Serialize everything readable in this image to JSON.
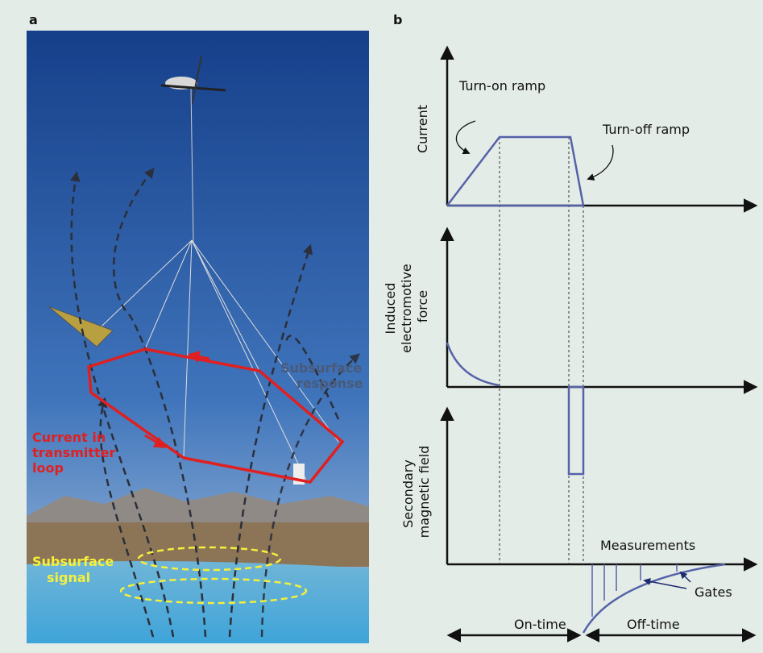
{
  "panel_a": {
    "label": "a",
    "subsurface_response": [
      "Subsurface",
      "response"
    ],
    "current_loop": [
      "Current in",
      "transmitter",
      "loop"
    ],
    "subsurface_signal": [
      "Subsurface",
      "signal"
    ]
  },
  "panel_b": {
    "label": "b",
    "current_axis": "Current",
    "turn_on": "Turn-on ramp",
    "turn_off": "Turn-off ramp",
    "emf_axis": [
      "Induced",
      "electromotive",
      "force"
    ],
    "field_axis": [
      "Secondary",
      "magnetic field"
    ],
    "measurements": "Measurements",
    "gates": "Gates",
    "on_time": "On-time",
    "off_time": "Off-time"
  }
}
